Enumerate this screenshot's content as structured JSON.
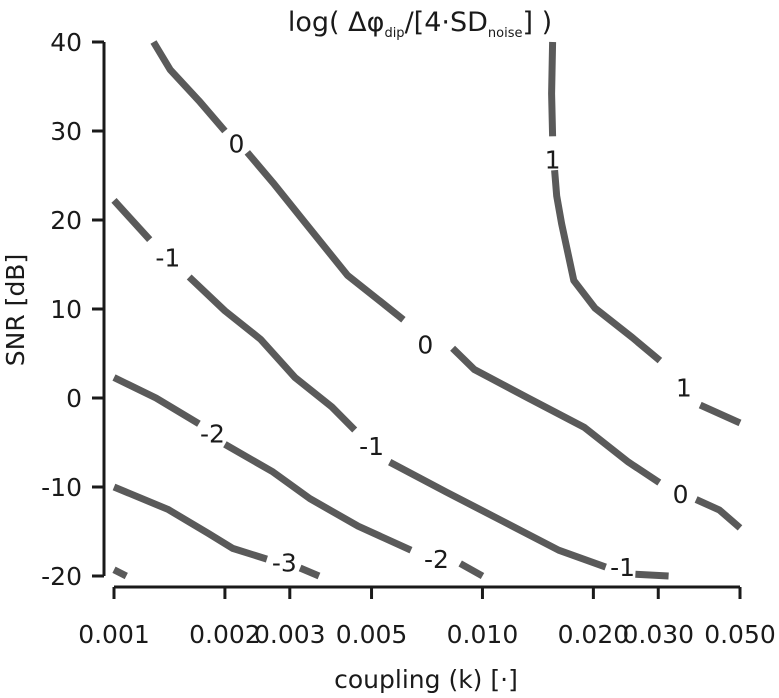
{
  "chart_data": {
    "type": "line",
    "title": {
      "prefix": "log( Δφ",
      "sub1": "dip",
      "middle": "/[4·SD",
      "sub2": "noise",
      "suffix": "] )"
    },
    "xlabel": "coupling (k) [·]",
    "ylabel": "SNR [dB]",
    "x_scale": "log",
    "xlim": [
      0.001,
      0.05
    ],
    "ylim": [
      -20,
      40
    ],
    "x_ticks": [
      0.001,
      0.002,
      0.003,
      0.005,
      0.01,
      0.02,
      0.03,
      0.05
    ],
    "x_tick_labels": [
      "0.001",
      "0.002",
      "0.003",
      "0.005",
      "0.010",
      "0.020",
      "0.030",
      "0.050"
    ],
    "y_ticks": [
      -20,
      -10,
      0,
      10,
      20,
      30,
      40
    ],
    "y_tick_labels": [
      "-20",
      "-10",
      "0",
      "10",
      "20",
      "30",
      "40"
    ],
    "grid": false,
    "line_color": "#5a5a5a",
    "series": [
      {
        "name": "-3",
        "segments": [
          {
            "x": [
              0.001,
              0.00108
            ],
            "y": [
              -19.3,
              -20.0
            ]
          },
          {
            "x": [
              0.001,
              0.0014,
              0.0018,
              0.0021,
              0.0026
            ],
            "y": [
              -10.0,
              -12.5,
              -15.2,
              -16.9,
              -18.1
            ]
          },
          {
            "x": [
              0.0032,
              0.0036
            ],
            "y": [
              -19.1,
              -20.0
            ]
          }
        ],
        "labels": [
          {
            "text": "-3",
            "x": 0.0029,
            "y": -18.5
          }
        ]
      },
      {
        "name": "-2",
        "segments": [
          {
            "x": [
              0.001,
              0.0013,
              0.0017
            ],
            "y": [
              2.3,
              0.0,
              -2.9
            ]
          },
          {
            "x": [
              0.002,
              0.0027,
              0.0034,
              0.0046,
              0.0064
            ],
            "y": [
              -5.2,
              -8.3,
              -11.3,
              -14.4,
              -17.1
            ]
          },
          {
            "x": [
              0.0087,
              0.01
            ],
            "y": [
              -18.6,
              -20.0
            ]
          }
        ],
        "labels": [
          {
            "text": "-2",
            "x": 0.00185,
            "y": -4.0
          },
          {
            "text": "-2",
            "x": 0.0075,
            "y": -18.1
          }
        ]
      },
      {
        "name": "-1",
        "segments": [
          {
            "x": [
              0.001,
              0.00125
            ],
            "y": [
              22.2,
              17.8
            ]
          },
          {
            "x": [
              0.0016,
              0.002,
              0.0025,
              0.0031,
              0.0039,
              0.0045
            ],
            "y": [
              13.6,
              9.8,
              6.6,
              2.3,
              -1.0,
              -3.6
            ]
          },
          {
            "x": [
              0.0056,
              0.008,
              0.0113,
              0.0161,
              0.0216
            ],
            "y": [
              -7.2,
              -10.6,
              -13.8,
              -17.1,
              -19.0
            ]
          },
          {
            "x": [
              0.026,
              0.032
            ],
            "y": [
              -19.8,
              -20.0
            ]
          }
        ],
        "labels": [
          {
            "text": "-1",
            "x": 0.0014,
            "y": 15.8
          },
          {
            "text": "-1",
            "x": 0.005,
            "y": -5.4
          },
          {
            "text": "-1",
            "x": 0.024,
            "y": -19.0
          }
        ]
      },
      {
        "name": "0",
        "segments": [
          {
            "x": [
              0.00128,
              0.00142,
              0.0017,
              0.002
            ],
            "y": [
              40.0,
              36.9,
              33.4,
              30.0
            ]
          },
          {
            "x": [
              0.0023,
              0.0027,
              0.0033,
              0.0043,
              0.0061
            ],
            "y": [
              27.6,
              24.2,
              19.7,
              13.8,
              8.8
            ]
          },
          {
            "x": [
              0.0083,
              0.0095,
              0.0133,
              0.0189,
              0.0249,
              0.0302
            ],
            "y": [
              5.6,
              3.2,
              0.0,
              -3.3,
              -7.2,
              -9.5
            ]
          },
          {
            "x": [
              0.038,
              0.044,
              0.05
            ],
            "y": [
              -11.4,
              -12.6,
              -14.6
            ]
          }
        ],
        "labels": [
          {
            "text": "0",
            "x": 0.00215,
            "y": 28.6
          },
          {
            "text": "0",
            "x": 0.007,
            "y": 6.0
          },
          {
            "text": "0",
            "x": 0.0345,
            "y": -10.8
          }
        ]
      },
      {
        "name": "1",
        "segments": [
          {
            "x": [
              0.0155,
              0.0154,
              0.0155
            ],
            "y": [
              40.0,
              34.2,
              29.4
            ]
          },
          {
            "x": [
              0.0157,
              0.0159,
              0.0164,
              0.0177,
              0.0202,
              0.0255,
              0.0303
            ],
            "y": [
              25.6,
              22.7,
              19.6,
              13.2,
              10.1,
              6.8,
              4.2
            ]
          },
          {
            "x": [
              0.039,
              0.05
            ],
            "y": [
              -0.8,
              -2.8
            ]
          }
        ],
        "labels": [
          {
            "text": "1",
            "x": 0.0155,
            "y": 26.8
          },
          {
            "text": "1",
            "x": 0.0352,
            "y": 1.2
          }
        ]
      }
    ]
  }
}
